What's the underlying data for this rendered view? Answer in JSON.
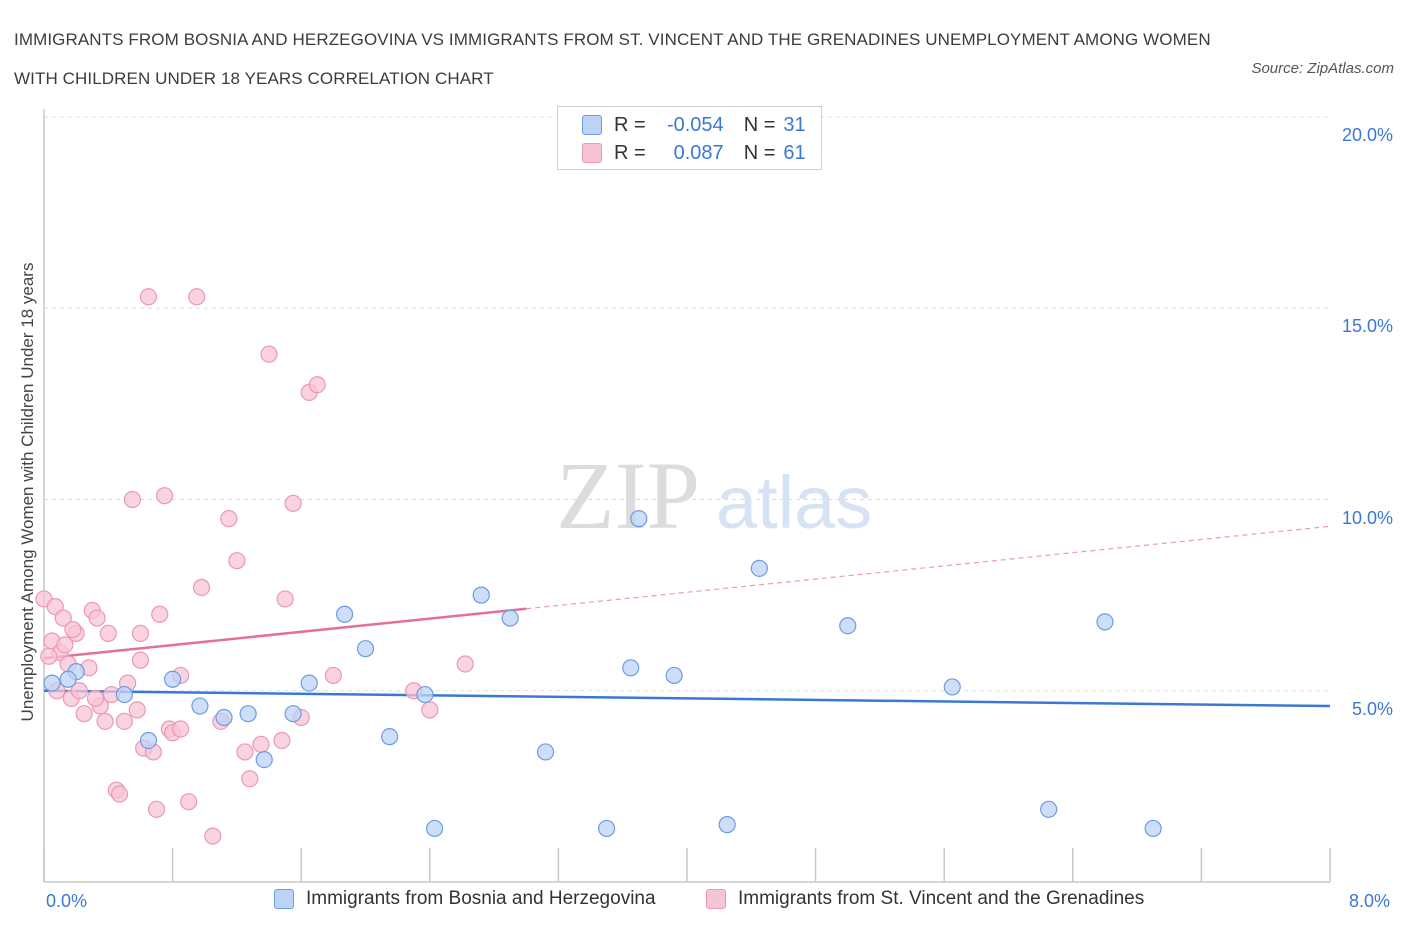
{
  "title": "IMMIGRANTS FROM BOSNIA AND HERZEGOVINA VS IMMIGRANTS FROM ST. VINCENT AND THE GRENADINES UNEMPLOYMENT AMONG WOMEN WITH CHILDREN UNDER 18 YEARS CORRELATION CHART",
  "source": "Source: ZipAtlas.com",
  "colors": {
    "blue": "#3a78d6",
    "blue_fill": "#bcd3f5",
    "pink": "#e56f98",
    "pink_fill": "#f7c4d4"
  },
  "legend": {
    "rows": [
      {
        "r_label": "R =",
        "r_value": "-0.054",
        "n_label": "N =",
        "n_value": "31"
      },
      {
        "r_label": "R =",
        "r_value": "0.087",
        "n_label": "N =",
        "n_value": "61"
      }
    ]
  },
  "chart_data": {
    "type": "scatter",
    "title": "IMMIGRANTS FROM BOSNIA AND HERZEGOVINA VS IMMIGRANTS FROM ST. VINCENT AND THE GRENADINES UNEMPLOYMENT AMONG WOMEN WITH CHILDREN UNDER 18 YEARS CORRELATION CHART",
    "xlabel": "",
    "ylabel": "Unemployment Among Women with Children Under 18 years",
    "xlim": [
      0,
      8
    ],
    "ylim": [
      0,
      20
    ],
    "x_tick_labels": [
      "0.0%",
      "8.0%"
    ],
    "y_tick_labels": [
      "5.0%",
      "10.0%",
      "15.0%",
      "20.0%"
    ],
    "y_ticks": [
      5,
      10,
      15,
      20
    ],
    "grid": true,
    "legend_position": "bottom",
    "series": [
      {
        "name": "Immigrants from Bosnia and Herzegovina",
        "color": "#3a78d6",
        "points": [
          [
            0.05,
            5.2
          ],
          [
            0.2,
            5.5
          ],
          [
            0.5,
            4.9
          ],
          [
            0.65,
            3.7
          ],
          [
            0.8,
            5.3
          ],
          [
            0.97,
            4.6
          ],
          [
            1.12,
            4.3
          ],
          [
            1.27,
            4.4
          ],
          [
            1.37,
            3.2
          ],
          [
            1.55,
            4.4
          ],
          [
            1.65,
            5.2
          ],
          [
            1.87,
            7.0
          ],
          [
            2.0,
            6.1
          ],
          [
            2.15,
            3.8
          ],
          [
            2.37,
            4.9
          ],
          [
            2.43,
            1.4
          ],
          [
            2.72,
            7.5
          ],
          [
            2.9,
            6.9
          ],
          [
            3.12,
            3.4
          ],
          [
            3.5,
            1.4
          ],
          [
            3.65,
            5.6
          ],
          [
            3.7,
            9.5
          ],
          [
            3.92,
            5.4
          ],
          [
            4.25,
            1.5
          ],
          [
            4.45,
            8.2
          ],
          [
            5.0,
            6.7
          ],
          [
            5.65,
            5.1
          ],
          [
            6.25,
            1.9
          ],
          [
            6.6,
            6.8
          ],
          [
            6.9,
            1.4
          ],
          [
            0.15,
            5.3
          ]
        ],
        "trend": {
          "x": [
            0,
            8
          ],
          "y": [
            5.0,
            4.6
          ]
        }
      },
      {
        "name": "Immigrants from St. Vincent and the Grenadines",
        "color": "#e56f98",
        "points": [
          [
            0.0,
            7.4
          ],
          [
            0.05,
            6.3
          ],
          [
            0.07,
            7.2
          ],
          [
            0.1,
            6.0
          ],
          [
            0.12,
            6.9
          ],
          [
            0.15,
            5.7
          ],
          [
            0.17,
            4.8
          ],
          [
            0.2,
            6.5
          ],
          [
            0.22,
            5.0
          ],
          [
            0.25,
            4.4
          ],
          [
            0.3,
            7.1
          ],
          [
            0.33,
            6.9
          ],
          [
            0.35,
            4.6
          ],
          [
            0.38,
            4.2
          ],
          [
            0.4,
            6.5
          ],
          [
            0.42,
            4.9
          ],
          [
            0.45,
            2.4
          ],
          [
            0.47,
            2.3
          ],
          [
            0.52,
            5.2
          ],
          [
            0.55,
            10.0
          ],
          [
            0.58,
            4.5
          ],
          [
            0.6,
            6.5
          ],
          [
            0.62,
            3.5
          ],
          [
            0.65,
            15.3
          ],
          [
            0.68,
            3.4
          ],
          [
            0.7,
            1.9
          ],
          [
            0.72,
            7.0
          ],
          [
            0.75,
            10.1
          ],
          [
            0.78,
            4.0
          ],
          [
            0.8,
            3.9
          ],
          [
            0.85,
            5.4
          ],
          [
            0.9,
            2.1
          ],
          [
            0.95,
            15.3
          ],
          [
            0.98,
            7.7
          ],
          [
            1.05,
            1.2
          ],
          [
            1.1,
            4.2
          ],
          [
            1.15,
            9.5
          ],
          [
            1.2,
            8.4
          ],
          [
            1.25,
            3.4
          ],
          [
            1.28,
            2.7
          ],
          [
            1.35,
            3.6
          ],
          [
            1.4,
            13.8
          ],
          [
            1.48,
            3.7
          ],
          [
            1.5,
            7.4
          ],
          [
            1.55,
            9.9
          ],
          [
            1.6,
            4.3
          ],
          [
            1.65,
            12.8
          ],
          [
            1.7,
            13.0
          ],
          [
            1.8,
            5.4
          ],
          [
            2.3,
            5.0
          ],
          [
            2.4,
            4.5
          ],
          [
            2.62,
            5.7
          ],
          [
            0.03,
            5.9
          ],
          [
            0.28,
            5.6
          ],
          [
            0.18,
            6.6
          ],
          [
            0.5,
            4.2
          ],
          [
            0.32,
            4.8
          ],
          [
            0.08,
            5.0
          ],
          [
            0.6,
            5.8
          ],
          [
            0.85,
            4.0
          ],
          [
            0.13,
            6.2
          ]
        ],
        "trend": {
          "x": [
            0,
            8
          ],
          "y": [
            5.85,
            9.3
          ],
          "solid_until_x": 3.0
        }
      }
    ]
  },
  "watermark": {
    "zip": "ZIP",
    "atlas": "atlas"
  }
}
